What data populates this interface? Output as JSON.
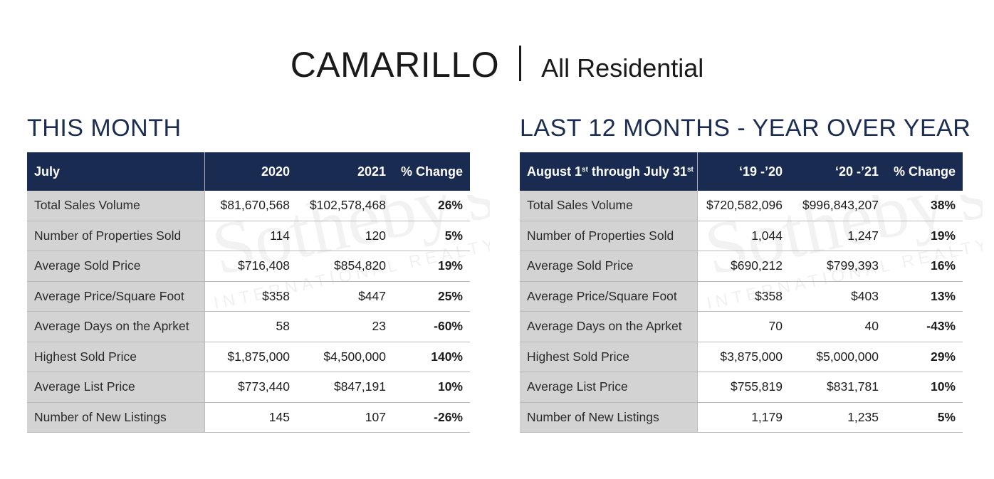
{
  "header": {
    "city": "CAMARILLO",
    "separator": "|",
    "subtitle": "All Residential"
  },
  "watermark": {
    "brand": "Sotheby's",
    "tagline": "INTERNATIONAL REALTY"
  },
  "this_month": {
    "title": "THIS MONTH",
    "headers": [
      "July",
      "2020",
      "2021",
      "% Change"
    ],
    "rows": [
      [
        "Total Sales Volume",
        "$81,670,568",
        "$102,578,468",
        "26%"
      ],
      [
        "Number of Properties Sold",
        "114",
        "120",
        "5%"
      ],
      [
        "Average Sold Price",
        "$716,408",
        "$854,820",
        "19%"
      ],
      [
        "Average Price/Square Foot",
        "$358",
        "$447",
        "25%"
      ],
      [
        "Average Days on the Aprket",
        "58",
        "23",
        "-60%"
      ],
      [
        "Highest Sold Price",
        "$1,875,000",
        "$4,500,000",
        "140%"
      ],
      [
        "Average List Price",
        "$773,440",
        "$847,191",
        "10%"
      ],
      [
        "Number of New Listings",
        "145",
        "107",
        "-26%"
      ]
    ]
  },
  "last_12_months": {
    "title": "LAST 12 MONTHS - YEAR OVER YEAR",
    "header_label": {
      "part1": "August 1",
      "sup1": "st",
      "part2": " through July 31",
      "sup2": "st"
    },
    "headers": [
      "",
      "‘19 -’20",
      "‘20 -’21",
      "% Change"
    ],
    "rows": [
      [
        "Total Sales Volume",
        "$720,582,096",
        "$996,843,207",
        "38%"
      ],
      [
        "Number of Properties Sold",
        "1,044",
        "1,247",
        "19%"
      ],
      [
        "Average Sold Price",
        "$690,212",
        "$799,393",
        "16%"
      ],
      [
        "Average Price/Square Foot",
        "$358",
        "$403",
        "13%"
      ],
      [
        "Average Days on the Aprket",
        "70",
        "40",
        "-43%"
      ],
      [
        "Highest Sold Price",
        "$3,875,000",
        "$5,000,000",
        "29%"
      ],
      [
        "Average List Price",
        "$755,819",
        "$831,781",
        "10%"
      ],
      [
        "Number of New Listings",
        "1,179",
        "1,235",
        "5%"
      ]
    ]
  },
  "colors": {
    "navy": "#1a2b52",
    "title_navy": "#1c2d52",
    "label_gray": "#d3d3d3"
  }
}
